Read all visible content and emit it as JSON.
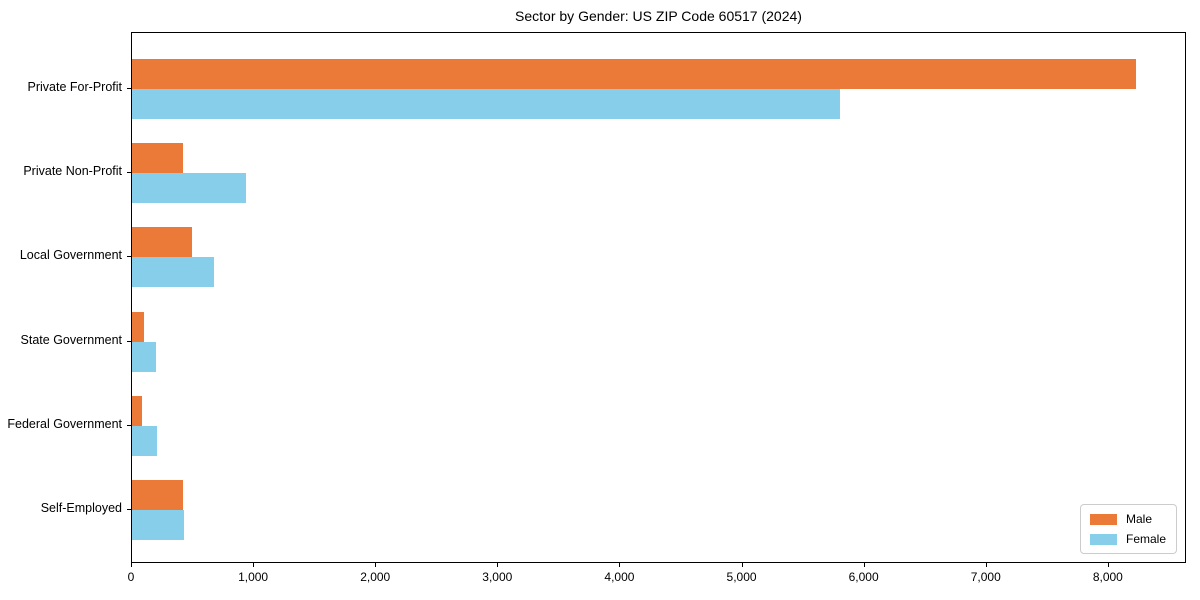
{
  "chart_data": {
    "type": "bar",
    "orientation": "horizontal",
    "title": "Sector by Gender: US ZIP Code 60517 (2024)",
    "categories": [
      "Private For-Profit",
      "Private Non-Profit",
      "Local Government",
      "State Government",
      "Federal Government",
      "Self-Employed"
    ],
    "series": [
      {
        "name": "Male",
        "color": "#EB7A38",
        "values": [
          8220,
          420,
          490,
          95,
          80,
          415
        ]
      },
      {
        "name": "Female",
        "color": "#87CEEB",
        "values": [
          5800,
          935,
          675,
          200,
          205,
          425
        ]
      }
    ],
    "xlim": [
      0,
      8640
    ],
    "xticks": [
      0,
      1000,
      2000,
      3000,
      4000,
      5000,
      6000,
      7000,
      8000
    ],
    "xtick_labels": [
      "0",
      "1,000",
      "2,000",
      "3,000",
      "4,000",
      "5,000",
      "6,000",
      "7,000",
      "8,000"
    ],
    "xlabel": "",
    "ylabel": "",
    "grid": false,
    "legend_position": "lower right",
    "axis_color": "#000000",
    "legend_border_color": "#cccccc",
    "background_color": "#ffffff"
  }
}
